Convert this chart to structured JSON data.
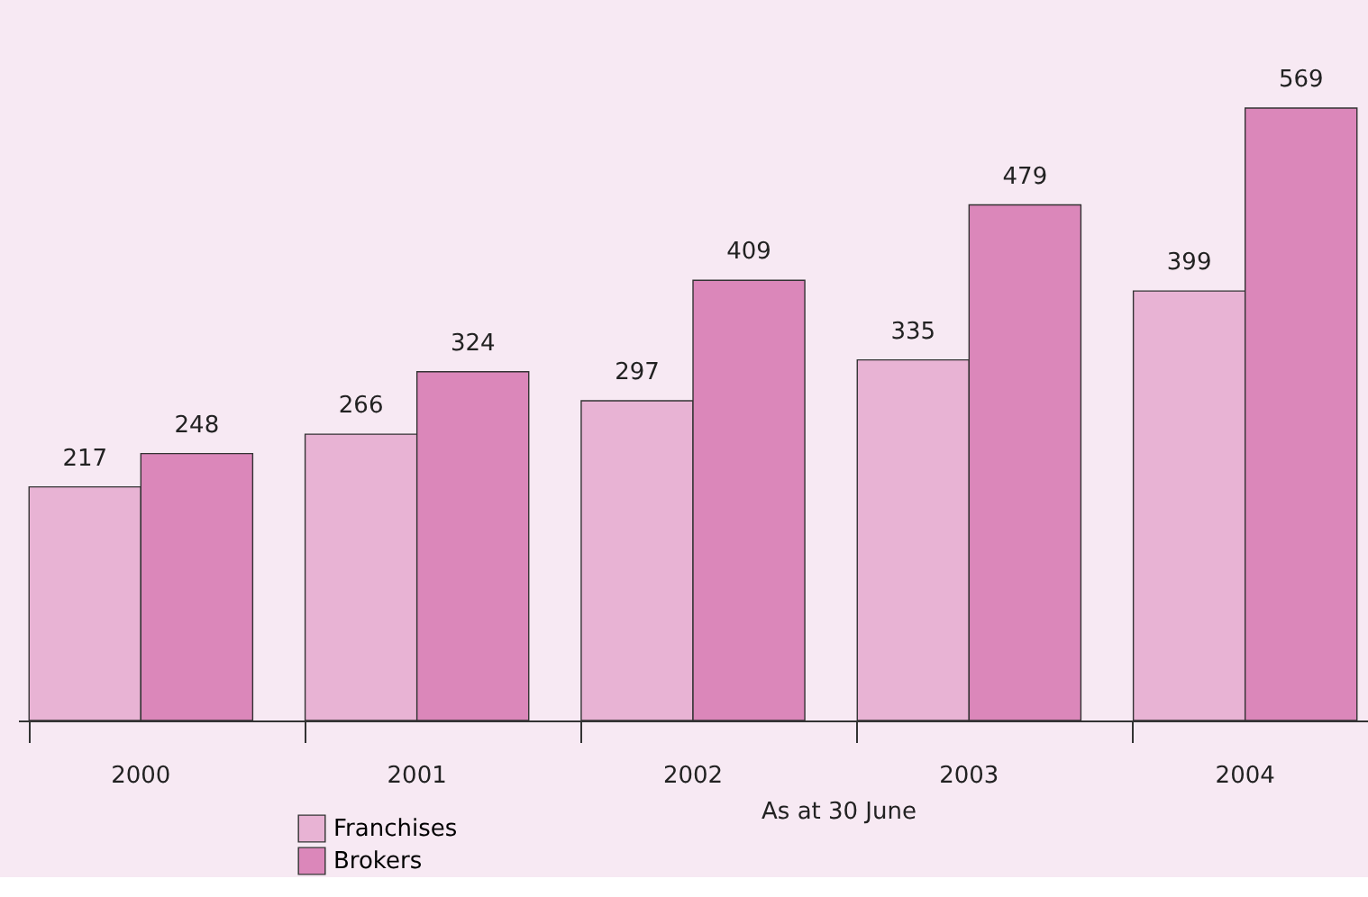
{
  "chart_data": {
    "type": "bar",
    "xlabel": "As at 30 June",
    "categories": [
      "2000",
      "2001",
      "2002",
      "2003",
      "2004"
    ],
    "series": [
      {
        "name": "Franchises",
        "color": "#e8b3d4",
        "values": [
          217,
          266,
          297,
          335,
          399
        ]
      },
      {
        "name": "Brokers",
        "color": "#db87ba",
        "values": [
          248,
          324,
          409,
          479,
          569
        ]
      }
    ],
    "data_labels": true,
    "legend": "bottom left",
    "grid": false
  }
}
